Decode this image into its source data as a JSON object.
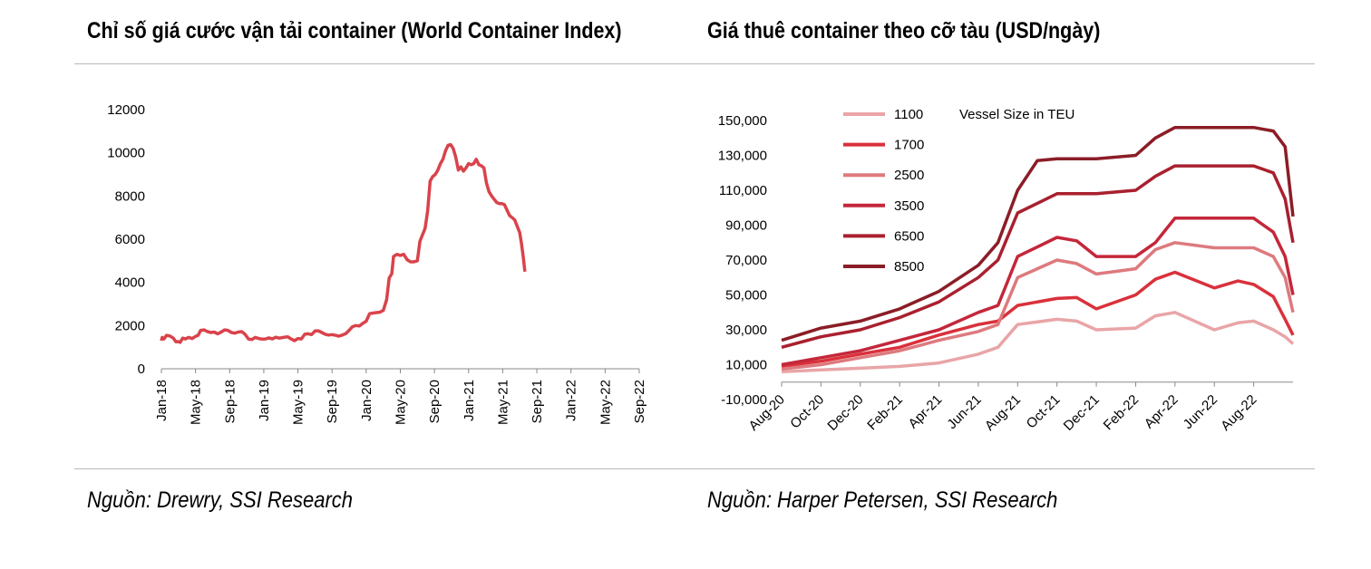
{
  "left_panel": {
    "title": "Chỉ số giá cước vận tải container (World Container Index)",
    "source": "Nguồn: Drewry, SSI Research"
  },
  "right_panel": {
    "title": "Giá thuê container theo cỡ tàu (USD/ngày)",
    "source": "Nguồn: Harper Petersen, SSI Research"
  },
  "chart_data": [
    {
      "type": "line",
      "title": "Chỉ số giá cước vận tải container (World Container Index)",
      "xlabel": "",
      "ylabel": "",
      "ylim": [
        0,
        12000
      ],
      "yticks": [
        0,
        2000,
        4000,
        6000,
        8000,
        10000,
        12000
      ],
      "x_tick_labels": [
        "Jan-18",
        "May-18",
        "Sep-18",
        "Jan-19",
        "May-19",
        "Sep-19",
        "Jan-20",
        "May-20",
        "Sep-20",
        "Jan-21",
        "May-21",
        "Sep-21",
        "Jan-22",
        "May-22",
        "Sep-22"
      ],
      "color": "#d9434b",
      "series": [
        {
          "name": "World Container Index",
          "points": [
            [
              0,
              1300
            ],
            [
              0.1,
              1450
            ],
            [
              0.3,
              1380
            ],
            [
              0.6,
              1550
            ],
            [
              1.0,
              1520
            ],
            [
              1.4,
              1420
            ],
            [
              1.7,
              1250
            ],
            [
              2.0,
              1260
            ],
            [
              2.2,
              1220
            ],
            [
              2.5,
              1420
            ],
            [
              2.8,
              1380
            ],
            [
              3.2,
              1450
            ],
            [
              3.6,
              1400
            ],
            [
              4.0,
              1500
            ],
            [
              4.3,
              1550
            ],
            [
              4.6,
              1780
            ],
            [
              5.0,
              1800
            ],
            [
              5.4,
              1720
            ],
            [
              5.8,
              1680
            ],
            [
              6.2,
              1700
            ],
            [
              6.6,
              1620
            ],
            [
              7.0,
              1700
            ],
            [
              7.4,
              1800
            ],
            [
              7.8,
              1780
            ],
            [
              8.2,
              1680
            ],
            [
              8.6,
              1650
            ],
            [
              9.0,
              1700
            ],
            [
              9.4,
              1720
            ],
            [
              9.8,
              1600
            ],
            [
              10.2,
              1380
            ],
            [
              10.6,
              1350
            ],
            [
              11.0,
              1450
            ],
            [
              11.4,
              1400
            ],
            [
              11.8,
              1370
            ],
            [
              12.2,
              1380
            ],
            [
              12.6,
              1430
            ],
            [
              13.0,
              1380
            ],
            [
              13.4,
              1460
            ],
            [
              13.8,
              1420
            ],
            [
              14.3,
              1450
            ],
            [
              14.8,
              1480
            ],
            [
              15.2,
              1380
            ],
            [
              15.6,
              1300
            ],
            [
              16.0,
              1400
            ],
            [
              16.4,
              1380
            ],
            [
              16.8,
              1600
            ],
            [
              17.2,
              1620
            ],
            [
              17.6,
              1580
            ],
            [
              18.0,
              1750
            ],
            [
              18.4,
              1760
            ],
            [
              18.8,
              1680
            ],
            [
              19.2,
              1600
            ],
            [
              19.6,
              1560
            ],
            [
              20.0,
              1580
            ],
            [
              20.4,
              1550
            ],
            [
              20.8,
              1510
            ],
            [
              21.2,
              1560
            ],
            [
              21.6,
              1630
            ],
            [
              22.0,
              1780
            ],
            [
              22.4,
              1950
            ],
            [
              22.8,
              2000
            ],
            [
              23.2,
              1980
            ],
            [
              23.6,
              2100
            ],
            [
              24.0,
              2200
            ],
            [
              24.4,
              2550
            ],
            [
              24.8,
              2580
            ],
            [
              25.2,
              2600
            ],
            [
              25.6,
              2620
            ],
            [
              26.0,
              2700
            ],
            [
              26.4,
              3200
            ],
            [
              26.7,
              4200
            ],
            [
              27.0,
              4400
            ],
            [
              27.2,
              5200
            ],
            [
              27.6,
              5300
            ],
            [
              28.0,
              5250
            ],
            [
              28.4,
              5300
            ],
            [
              28.8,
              5050
            ],
            [
              29.2,
              4950
            ],
            [
              29.6,
              4950
            ],
            [
              30.0,
              5000
            ],
            [
              30.3,
              5900
            ],
            [
              30.6,
              6200
            ],
            [
              30.9,
              6500
            ],
            [
              31.2,
              7300
            ],
            [
              31.5,
              8700
            ],
            [
              31.8,
              8900
            ],
            [
              32.1,
              9000
            ],
            [
              32.4,
              9200
            ],
            [
              32.7,
              9500
            ],
            [
              33.0,
              9700
            ],
            [
              33.3,
              10100
            ],
            [
              33.6,
              10350
            ],
            [
              33.9,
              10380
            ],
            [
              34.2,
              10200
            ],
            [
              34.5,
              9800
            ],
            [
              34.8,
              9200
            ],
            [
              35.1,
              9350
            ],
            [
              35.4,
              9150
            ],
            [
              35.7,
              9300
            ],
            [
              36.0,
              9500
            ],
            [
              36.3,
              9450
            ],
            [
              36.6,
              9500
            ],
            [
              36.9,
              9700
            ],
            [
              37.2,
              9450
            ],
            [
              37.5,
              9400
            ],
            [
              37.8,
              9300
            ],
            [
              38.1,
              8600
            ],
            [
              38.4,
              8200
            ],
            [
              38.7,
              8000
            ],
            [
              39.0,
              7850
            ],
            [
              39.3,
              7700
            ],
            [
              39.6,
              7650
            ],
            [
              39.9,
              7650
            ],
            [
              40.2,
              7600
            ],
            [
              40.5,
              7350
            ],
            [
              40.8,
              7100
            ],
            [
              41.1,
              7000
            ],
            [
              41.4,
              6900
            ],
            [
              41.7,
              6600
            ],
            [
              42.0,
              6300
            ],
            [
              42.2,
              5800
            ],
            [
              42.4,
              5200
            ],
            [
              42.6,
              4500
            ]
          ]
        }
      ]
    },
    {
      "type": "line",
      "title": "Giá thuê container theo cỡ tàu (USD/ngày)",
      "xlabel": "",
      "ylabel": "",
      "ylim": [
        -10000,
        150000
      ],
      "yticks": [
        -10000,
        10000,
        30000,
        50000,
        70000,
        90000,
        110000,
        130000,
        150000
      ],
      "ytick_labels": [
        "-10,000",
        "10,000",
        "30,000",
        "50,000",
        "70,000",
        "90,000",
        "110,000",
        "130,000",
        "150,000"
      ],
      "x_tick_labels": [
        "Aug-20",
        "Oct-20",
        "Dec-20",
        "Feb-21",
        "Apr-21",
        "Jun-21",
        "Aug-21",
        "Oct-21",
        "Dec-21",
        "Feb-22",
        "Apr-22",
        "Jun-22",
        "Aug-22"
      ],
      "legend_title": "Vessel Size in TEU",
      "series": [
        {
          "name": "1100",
          "color": "#e9a5a7",
          "points": [
            [
              0,
              6000
            ],
            [
              1,
              7000
            ],
            [
              2,
              8000
            ],
            [
              3,
              9000
            ],
            [
              4,
              11000
            ],
            [
              5,
              16000
            ],
            [
              5.5,
              20000
            ],
            [
              6,
              33000
            ],
            [
              7,
              36000
            ],
            [
              7.5,
              35000
            ],
            [
              8,
              30000
            ],
            [
              9,
              31000
            ],
            [
              9.5,
              38000
            ],
            [
              10,
              40000
            ],
            [
              11,
              30000
            ],
            [
              11.6,
              34000
            ],
            [
              12,
              35000
            ],
            [
              12.5,
              30000
            ],
            [
              12.8,
              26000
            ],
            [
              13,
              22000
            ]
          ]
        },
        {
          "name": "1700",
          "color": "#d9313b",
          "points": [
            [
              0,
              9000
            ],
            [
              1,
              12000
            ],
            [
              2,
              16000
            ],
            [
              3,
              20000
            ],
            [
              4,
              27000
            ],
            [
              5,
              33000
            ],
            [
              5.5,
              35000
            ],
            [
              6,
              44000
            ],
            [
              7,
              48000
            ],
            [
              7.5,
              48500
            ],
            [
              8,
              42000
            ],
            [
              9,
              50000
            ],
            [
              9.5,
              59000
            ],
            [
              10,
              63000
            ],
            [
              11,
              54000
            ],
            [
              11.6,
              58000
            ],
            [
              12,
              56000
            ],
            [
              12.5,
              49000
            ],
            [
              12.8,
              36000
            ],
            [
              13,
              27000
            ]
          ]
        },
        {
          "name": "2500",
          "color": "#dd7a7e",
          "points": [
            [
              0,
              7500
            ],
            [
              1,
              10000
            ],
            [
              2,
              14000
            ],
            [
              3,
              18000
            ],
            [
              4,
              24000
            ],
            [
              5,
              29000
            ],
            [
              5.5,
              33000
            ],
            [
              6,
              60000
            ],
            [
              7,
              70000
            ],
            [
              7.5,
              68000
            ],
            [
              8,
              62000
            ],
            [
              9,
              65000
            ],
            [
              9.5,
              76000
            ],
            [
              10,
              80000
            ],
            [
              11,
              77000
            ],
            [
              11.6,
              77000
            ],
            [
              12,
              77000
            ],
            [
              12.5,
              72000
            ],
            [
              12.8,
              60000
            ],
            [
              13,
              40000
            ]
          ]
        },
        {
          "name": "3500",
          "color": "#c4273a",
          "points": [
            [
              0,
              10000
            ],
            [
              1,
              14000
            ],
            [
              2,
              18000
            ],
            [
              3,
              24000
            ],
            [
              4,
              30000
            ],
            [
              5,
              40000
            ],
            [
              5.5,
              44000
            ],
            [
              6,
              72000
            ],
            [
              7,
              83000
            ],
            [
              7.5,
              81000
            ],
            [
              8,
              72000
            ],
            [
              9,
              72000
            ],
            [
              9.5,
              80000
            ],
            [
              10,
              94000
            ],
            [
              11,
              94000
            ],
            [
              11.6,
              94000
            ],
            [
              12,
              94000
            ],
            [
              12.5,
              86000
            ],
            [
              12.8,
              72000
            ],
            [
              13,
              50000
            ]
          ]
        },
        {
          "name": "6500",
          "color": "#a9202e",
          "points": [
            [
              0,
              20000
            ],
            [
              1,
              26000
            ],
            [
              2,
              30000
            ],
            [
              3,
              37000
            ],
            [
              4,
              46000
            ],
            [
              5,
              60000
            ],
            [
              5.5,
              70000
            ],
            [
              6,
              97000
            ],
            [
              7,
              108000
            ],
            [
              7.5,
              108000
            ],
            [
              8,
              108000
            ],
            [
              9,
              110000
            ],
            [
              9.5,
              118000
            ],
            [
              10,
              124000
            ],
            [
              11,
              124000
            ],
            [
              11.6,
              124000
            ],
            [
              12,
              124000
            ],
            [
              12.5,
              120000
            ],
            [
              12.8,
              105000
            ],
            [
              13,
              80000
            ]
          ]
        },
        {
          "name": "8500",
          "color": "#8b1d27",
          "points": [
            [
              0,
              24000
            ],
            [
              1,
              31000
            ],
            [
              2,
              35000
            ],
            [
              3,
              42000
            ],
            [
              4,
              52000
            ],
            [
              5,
              67000
            ],
            [
              5.5,
              80000
            ],
            [
              6,
              110000
            ],
            [
              6.5,
              127000
            ],
            [
              7,
              128000
            ],
            [
              8,
              128000
            ],
            [
              9,
              130000
            ],
            [
              9.5,
              140000
            ],
            [
              10,
              146000
            ],
            [
              11,
              146000
            ],
            [
              11.6,
              146000
            ],
            [
              12,
              146000
            ],
            [
              12.5,
              144000
            ],
            [
              12.8,
              135000
            ],
            [
              13,
              95000
            ]
          ]
        }
      ]
    }
  ]
}
